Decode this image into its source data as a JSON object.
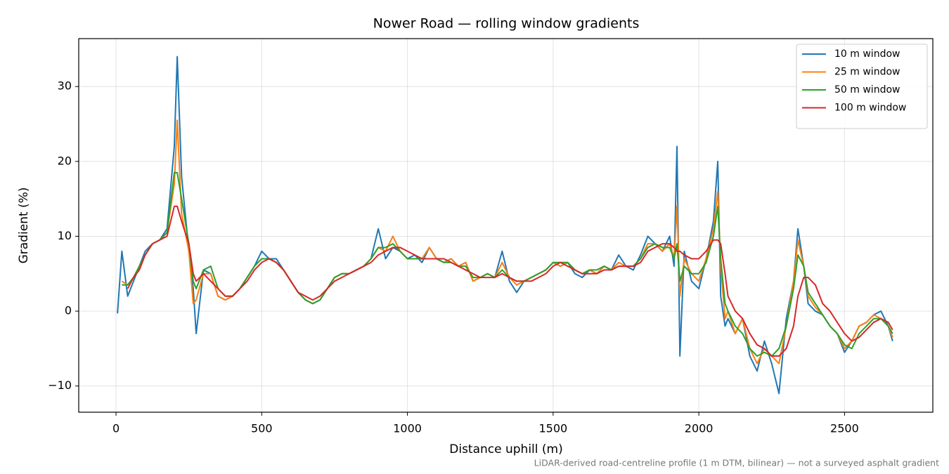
{
  "chart_data": {
    "type": "line",
    "title": "Nower Road — rolling window gradients",
    "xlabel": "Distance uphill (m)",
    "ylabel": "Gradient (%)",
    "note": "LiDAR-derived road-centreline profile (1 m DTM, bilinear) — not a surveyed asphalt gradient",
    "xlim": [
      -128,
      2803
    ],
    "ylim": [
      -13.5,
      36.4
    ],
    "xticks": [
      0,
      500,
      1000,
      1500,
      2000,
      2500
    ],
    "yticks": [
      {
        "value": -10,
        "label": "−10"
      },
      0,
      10,
      20,
      30
    ],
    "grid": true,
    "legend": "upper right",
    "x": [
      5,
      20,
      40,
      60,
      80,
      100,
      125,
      150,
      175,
      200,
      210,
      225,
      250,
      265,
      275,
      300,
      325,
      350,
      375,
      400,
      425,
      450,
      475,
      500,
      525,
      550,
      575,
      600,
      625,
      650,
      675,
      700,
      725,
      750,
      775,
      800,
      825,
      850,
      875,
      900,
      925,
      950,
      975,
      1000,
      1025,
      1050,
      1075,
      1100,
      1125,
      1150,
      1175,
      1200,
      1225,
      1250,
      1275,
      1300,
      1325,
      1350,
      1375,
      1400,
      1425,
      1450,
      1475,
      1500,
      1525,
      1550,
      1575,
      1600,
      1625,
      1650,
      1675,
      1700,
      1725,
      1750,
      1775,
      1800,
      1825,
      1850,
      1875,
      1900,
      1915,
      1925,
      1935,
      1950,
      1975,
      2000,
      2025,
      2050,
      2065,
      2075,
      2090,
      2100,
      2125,
      2150,
      2175,
      2200,
      2225,
      2250,
      2275,
      2300,
      2325,
      2340,
      2360,
      2375,
      2400,
      2425,
      2450,
      2475,
      2500,
      2525,
      2550,
      2575,
      2600,
      2625,
      2650,
      2665
    ],
    "series": [
      {
        "name": "10 m window",
        "color": "#1f77b4",
        "values": [
          -0.3,
          8,
          2,
          4,
          6,
          8,
          9,
          9.5,
          11,
          22,
          34,
          18,
          8,
          3,
          -3,
          5.5,
          5,
          2,
          1.5,
          2,
          3,
          4.5,
          6,
          8,
          7,
          7,
          5.5,
          4,
          2.5,
          1.5,
          1,
          1.5,
          3,
          4.5,
          5,
          5,
          5.5,
          6,
          7,
          11,
          7,
          8.5,
          8,
          7,
          7.5,
          6.5,
          8.5,
          7,
          6.5,
          7,
          6,
          6.5,
          4,
          4.5,
          5,
          4.5,
          8,
          4,
          2.5,
          4,
          4.5,
          5,
          5.5,
          6.5,
          6,
          6.5,
          5,
          4.5,
          5.5,
          5,
          6,
          5.5,
          7.5,
          6,
          5.5,
          7.5,
          10,
          9,
          8,
          10,
          6,
          22,
          -6,
          8,
          4,
          3,
          7,
          12,
          20,
          2,
          -2,
          -1,
          -3,
          -1,
          -6,
          -8,
          -4,
          -7,
          -11,
          -1,
          4,
          11,
          6,
          1,
          0,
          -0.5,
          -2,
          -3,
          -5.5,
          -4,
          -2,
          -1.5,
          -0.5,
          0,
          -2,
          -4
        ]
      },
      {
        "name": "25 m window",
        "color": "#ff7f0e",
        "values": [
          null,
          4,
          3.5,
          4.5,
          6,
          7.5,
          9,
          9.5,
          10.5,
          17,
          25.5,
          13,
          8,
          1,
          1.5,
          5,
          5,
          2,
          1.5,
          2,
          3,
          4.5,
          6,
          7,
          7,
          6.5,
          5.5,
          4,
          2.5,
          1.5,
          1,
          1.5,
          3,
          4.5,
          5,
          5,
          5.5,
          6,
          7,
          8.5,
          8,
          10,
          8,
          7,
          7,
          7,
          8.5,
          7,
          6.5,
          7,
          6,
          6.5,
          4,
          4.5,
          5,
          4.5,
          6.5,
          4.5,
          3.5,
          4,
          4.5,
          5,
          5.5,
          6.5,
          6,
          6.5,
          5.5,
          5,
          5.5,
          5,
          6,
          5.5,
          6.5,
          6,
          6,
          7,
          9,
          9,
          8,
          9,
          7,
          14,
          2,
          7,
          5,
          4,
          7,
          11,
          16,
          6,
          -1,
          0,
          -3,
          -1,
          -5,
          -7,
          -5,
          -6,
          -7,
          -2,
          4,
          9.5,
          6,
          2,
          0.5,
          -0.5,
          -2,
          -3,
          -5,
          -4,
          -2,
          -1.5,
          -0.5,
          -1,
          -2,
          -3.5
        ]
      },
      {
        "name": "50 m window",
        "color": "#2ca02c",
        "values": [
          null,
          3.5,
          3.5,
          4.5,
          6,
          7.5,
          9,
          9.5,
          10.5,
          18.5,
          18.5,
          15,
          9,
          4,
          3,
          5.5,
          6,
          3,
          2,
          2,
          3,
          4.5,
          6,
          7,
          7,
          6.5,
          5.5,
          4,
          2.5,
          1.5,
          1,
          1.5,
          3,
          4.5,
          5,
          5,
          5.5,
          6,
          7,
          8.5,
          8.5,
          9,
          8,
          7,
          7,
          7,
          7,
          7,
          6.5,
          6.5,
          6,
          6,
          4.5,
          4.5,
          5,
          4.5,
          5.5,
          4.5,
          4,
          4,
          4.5,
          5,
          5.5,
          6.5,
          6.5,
          6.5,
          5.5,
          5,
          5.5,
          5.5,
          6,
          5.5,
          6,
          6,
          6,
          7,
          8.5,
          9,
          8.5,
          8.5,
          7,
          9,
          4,
          6,
          5,
          5,
          6.5,
          10,
          14,
          7,
          1,
          0,
          -2,
          -3,
          -5,
          -6,
          -5.5,
          -6,
          -5,
          -2,
          3,
          7.5,
          6,
          2.5,
          1,
          -0.5,
          -2,
          -3,
          -4.5,
          -5,
          -3,
          -2,
          -1,
          -1,
          -2,
          -3
        ]
      },
      {
        "name": "100 m window",
        "color": "#d62728",
        "values": [
          null,
          null,
          3,
          4.5,
          5.5,
          7.5,
          9,
          9.5,
          10,
          14,
          14,
          12,
          9,
          5,
          4,
          5,
          4,
          3,
          2,
          2,
          3,
          4,
          5.5,
          6.5,
          7,
          6.5,
          5.5,
          4,
          2.5,
          2,
          1.5,
          2,
          3,
          4,
          4.5,
          5,
          5.5,
          6,
          6.5,
          7.5,
          8,
          8.5,
          8.5,
          8,
          7.5,
          7,
          7,
          7,
          7,
          6.5,
          6,
          5.5,
          5,
          4.5,
          4.5,
          4.5,
          5,
          4.5,
          4,
          4,
          4,
          4.5,
          5,
          6,
          6.5,
          6,
          5.5,
          5,
          5,
          5,
          5.5,
          5.5,
          6,
          6,
          6,
          6.5,
          8,
          8.5,
          9,
          9,
          8.5,
          8,
          8,
          7.5,
          7,
          7,
          8,
          9.5,
          9.5,
          9,
          5,
          2,
          0,
          -1,
          -3,
          -4.5,
          -5,
          -6,
          -6,
          -5,
          -2,
          2,
          4.5,
          4.5,
          3.5,
          1,
          0,
          -1.5,
          -3,
          -4,
          -3.5,
          -2.5,
          -1.5,
          -1,
          -1.5,
          -2.5
        ]
      }
    ]
  }
}
